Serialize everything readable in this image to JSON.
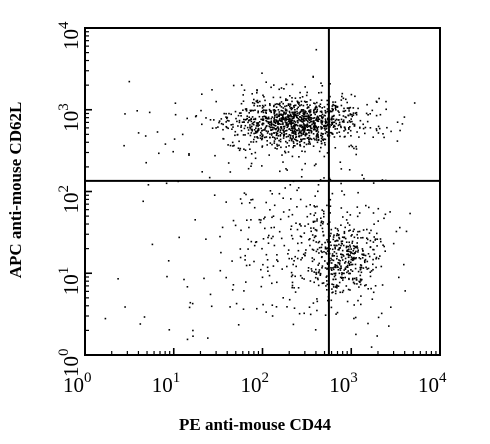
{
  "chart_data": {
    "type": "scatter",
    "xlabel": "PE anti-mouse CD44",
    "ylabel": "APC anti-mouse CD62L",
    "xscale": "log",
    "yscale": "log",
    "xlim": [
      1,
      10000
    ],
    "ylim": [
      1,
      10000
    ],
    "x_ticks": [
      {
        "base": "10",
        "exp": "0",
        "value": 1
      },
      {
        "base": "10",
        "exp": "1",
        "value": 10
      },
      {
        "base": "10",
        "exp": "2",
        "value": 100
      },
      {
        "base": "10",
        "exp": "3",
        "value": 1000
      },
      {
        "base": "10",
        "exp": "4",
        "value": 10000
      }
    ],
    "y_ticks": [
      {
        "base": "10",
        "exp": "0",
        "value": 1
      },
      {
        "base": "10",
        "exp": "1",
        "value": 10
      },
      {
        "base": "10",
        "exp": "2",
        "value": 100
      },
      {
        "base": "10",
        "exp": "3",
        "value": 1000
      },
      {
        "base": "10",
        "exp": "4",
        "value": 10000
      }
    ],
    "quadrant_gates": {
      "x": 560,
      "y": 135
    },
    "populations": [
      {
        "center": [
          250,
          700
        ],
        "spread": [
          0.35,
          0.13
        ],
        "count": 900
      },
      {
        "center": [
          160,
          800
        ],
        "spread": [
          0.45,
          0.22
        ],
        "count": 250
      },
      {
        "center": [
          90,
          550
        ],
        "spread": [
          0.7,
          0.35
        ],
        "count": 70
      },
      {
        "center": [
          800,
          15
        ],
        "spread": [
          0.18,
          0.2
        ],
        "count": 300
      },
      {
        "center": [
          500,
          25
        ],
        "spread": [
          0.4,
          0.5
        ],
        "count": 280
      },
      {
        "center": [
          150,
          30
        ],
        "spread": [
          0.55,
          0.45
        ],
        "count": 110
      },
      {
        "center": [
          30,
          5
        ],
        "spread": [
          0.6,
          0.5
        ],
        "count": 35
      }
    ],
    "grid": false,
    "marker_color": "#000000"
  }
}
